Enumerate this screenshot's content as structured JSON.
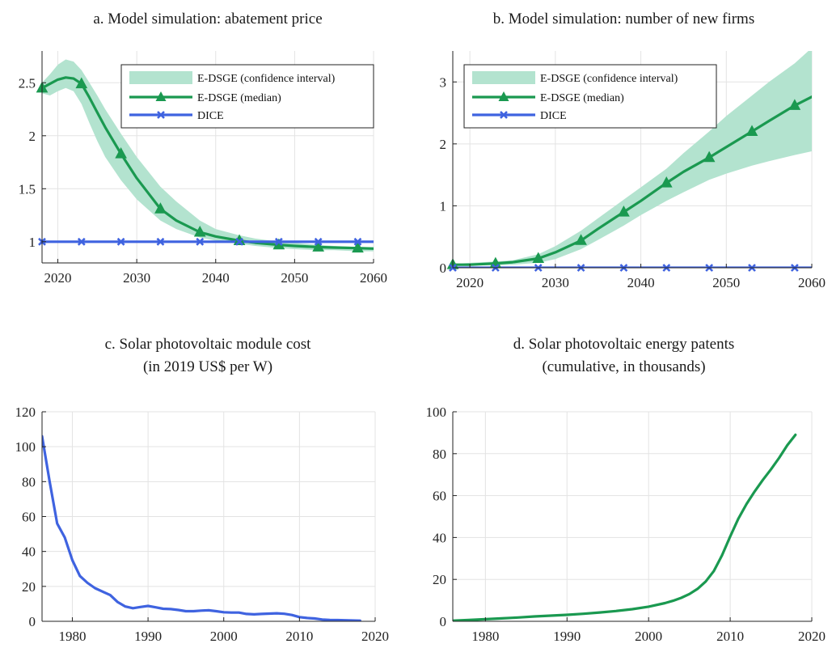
{
  "chart_data": [
    {
      "id": "a",
      "type": "line",
      "title": "a. Model simulation: abatement price",
      "xlim": [
        2018,
        2060
      ],
      "ylim": [
        0.8,
        2.8
      ],
      "xticks": [
        2020,
        2030,
        2040,
        2050,
        2060
      ],
      "yticks": [
        1,
        1.5,
        2,
        2.5
      ],
      "ytick_labels": [
        "1",
        "1.5",
        "2",
        "2.5"
      ],
      "grid": true,
      "legend_position": "top-right",
      "colors": {
        "band": "#b3e3cf",
        "median": "#1a9950",
        "dice": "#3f63e0"
      },
      "legend": [
        "E-DSGE (confidence interval)",
        "E-DSGE (median)",
        "DICE"
      ],
      "series": [
        {
          "name": "E-DSGE (confidence interval)",
          "kind": "band",
          "x": [
            2018,
            2019,
            2020,
            2021,
            2022,
            2023,
            2024,
            2025,
            2026,
            2028,
            2030,
            2033,
            2035,
            2038,
            2040,
            2043,
            2045,
            2048,
            2050,
            2053,
            2055,
            2058,
            2060
          ],
          "upper": [
            2.5,
            2.58,
            2.67,
            2.72,
            2.7,
            2.62,
            2.5,
            2.38,
            2.25,
            2.02,
            1.8,
            1.52,
            1.38,
            1.2,
            1.12,
            1.06,
            1.03,
            1.0,
            0.99,
            0.97,
            0.96,
            0.95,
            0.95
          ],
          "lower": [
            2.4,
            2.38,
            2.42,
            2.45,
            2.42,
            2.3,
            2.12,
            1.95,
            1.8,
            1.58,
            1.4,
            1.2,
            1.12,
            1.04,
            1.01,
            0.98,
            0.96,
            0.94,
            0.93,
            0.92,
            0.92,
            0.91,
            0.91
          ]
        },
        {
          "name": "E-DSGE (median)",
          "kind": "line",
          "x": [
            2018,
            2019,
            2020,
            2021,
            2022,
            2023,
            2024,
            2025,
            2026,
            2028,
            2030,
            2033,
            2035,
            2038,
            2040,
            2043,
            2045,
            2048,
            2050,
            2053,
            2055,
            2058,
            2060
          ],
          "y": [
            2.45,
            2.49,
            2.53,
            2.55,
            2.54,
            2.49,
            2.36,
            2.22,
            2.08,
            1.83,
            1.6,
            1.31,
            1.2,
            1.09,
            1.05,
            1.01,
            0.99,
            0.97,
            0.96,
            0.95,
            0.945,
            0.94,
            0.935
          ],
          "markers_x": [
            2018,
            2023,
            2028,
            2033,
            2038,
            2043,
            2048,
            2053,
            2058
          ],
          "marker": "triangle"
        },
        {
          "name": "DICE",
          "kind": "line",
          "x": [
            2018,
            2060
          ],
          "y": [
            1.0,
            1.0
          ],
          "markers_x": [
            2018,
            2023,
            2028,
            2033,
            2038,
            2043,
            2048,
            2053,
            2058
          ],
          "marker": "x"
        }
      ]
    },
    {
      "id": "b",
      "type": "line",
      "title": "b. Model simulation: number of new firms",
      "xlim": [
        2018,
        2060
      ],
      "ylim": [
        0,
        3.5
      ],
      "xticks": [
        2020,
        2030,
        2040,
        2050,
        2060
      ],
      "yticks": [
        0,
        1,
        2,
        3
      ],
      "ytick_labels": [
        "0",
        "1",
        "2",
        "3"
      ],
      "grid": true,
      "legend_position": "top-left",
      "colors": {
        "band": "#b3e3cf",
        "median": "#1a9950",
        "dice": "#3f63e0"
      },
      "legend": [
        "E-DSGE (confidence interval)",
        "E-DSGE (median)",
        "DICE"
      ],
      "series": [
        {
          "name": "E-DSGE (confidence interval)",
          "kind": "band",
          "x": [
            2018,
            2020,
            2023,
            2025,
            2028,
            2030,
            2033,
            2035,
            2038,
            2040,
            2043,
            2045,
            2048,
            2050,
            2053,
            2055,
            2058,
            2060
          ],
          "upper": [
            0.06,
            0.08,
            0.1,
            0.12,
            0.22,
            0.35,
            0.6,
            0.8,
            1.1,
            1.3,
            1.6,
            1.85,
            2.2,
            2.45,
            2.78,
            3.0,
            3.3,
            3.55
          ],
          "lower": [
            0.04,
            0.04,
            0.04,
            0.05,
            0.08,
            0.14,
            0.3,
            0.45,
            0.68,
            0.85,
            1.08,
            1.22,
            1.42,
            1.52,
            1.65,
            1.72,
            1.82,
            1.88
          ]
        },
        {
          "name": "E-DSGE (median)",
          "kind": "line",
          "x": [
            2018,
            2020,
            2023,
            2025,
            2028,
            2030,
            2033,
            2035,
            2038,
            2040,
            2043,
            2045,
            2048,
            2050,
            2053,
            2055,
            2058,
            2060
          ],
          "y": [
            0.05,
            0.05,
            0.07,
            0.09,
            0.15,
            0.25,
            0.44,
            0.63,
            0.9,
            1.08,
            1.37,
            1.55,
            1.78,
            1.95,
            2.2,
            2.37,
            2.62,
            2.76
          ],
          "markers_x": [
            2018,
            2023,
            2028,
            2033,
            2038,
            2043,
            2048,
            2053,
            2058
          ],
          "marker": "triangle"
        },
        {
          "name": "DICE",
          "kind": "line",
          "x": [
            2018,
            2060
          ],
          "y": [
            0.0,
            0.0
          ],
          "markers_x": [
            2018,
            2023,
            2028,
            2033,
            2038,
            2043,
            2048,
            2053,
            2058
          ],
          "marker": "x"
        }
      ]
    },
    {
      "id": "c",
      "type": "line",
      "title": "c. Solar photovoltaic module cost",
      "subtitle": "(in 2019 US$ per W)",
      "xlim": [
        1976,
        2020
      ],
      "ylim": [
        0,
        120
      ],
      "xticks": [
        1980,
        1990,
        2000,
        2010,
        2020
      ],
      "yticks": [
        0,
        20,
        40,
        60,
        80,
        100,
        120
      ],
      "ytick_labels": [
        "0",
        "20",
        "40",
        "60",
        "80",
        "100",
        "120"
      ],
      "grid": true,
      "colors": {
        "line": "#3f63e0"
      },
      "series": [
        {
          "kind": "line",
          "x": [
            1976,
            1977,
            1978,
            1979,
            1980,
            1981,
            1982,
            1983,
            1984,
            1985,
            1986,
            1987,
            1988,
            1989,
            1990,
            1991,
            1992,
            1993,
            1994,
            1995,
            1996,
            1997,
            1998,
            1999,
            2000,
            2001,
            2002,
            2003,
            2004,
            2005,
            2006,
            2007,
            2008,
            2009,
            2010,
            2011,
            2012,
            2013,
            2014,
            2015,
            2016,
            2017,
            2018
          ],
          "y": [
            106,
            80,
            56,
            48,
            35,
            26,
            22,
            19,
            17,
            15,
            11,
            8.5,
            7.5,
            8.2,
            8.8,
            8.0,
            7.2,
            7.0,
            6.5,
            5.8,
            5.8,
            6.1,
            6.3,
            5.8,
            5.2,
            5.0,
            5.0,
            4.2,
            4.0,
            4.2,
            4.4,
            4.6,
            4.3,
            3.6,
            2.4,
            1.9,
            1.6,
            1.0,
            0.8,
            0.7,
            0.6,
            0.45,
            0.35
          ]
        }
      ]
    },
    {
      "id": "d",
      "type": "line",
      "title": "d. Solar photovoltaic energy patents",
      "subtitle": "(cumulative, in thousands)",
      "xlim": [
        1976,
        2020
      ],
      "ylim": [
        0,
        100
      ],
      "xticks": [
        1980,
        1990,
        2000,
        2010,
        2020
      ],
      "yticks": [
        0,
        20,
        40,
        60,
        80,
        100
      ],
      "ytick_labels": [
        "0",
        "20",
        "40",
        "60",
        "80",
        "100"
      ],
      "grid": true,
      "colors": {
        "line": "#1a9950"
      },
      "series": [
        {
          "kind": "line",
          "x": [
            1976,
            1978,
            1980,
            1982,
            1984,
            1986,
            1988,
            1990,
            1992,
            1994,
            1996,
            1998,
            2000,
            2002,
            2003,
            2004,
            2005,
            2006,
            2007,
            2008,
            2009,
            2010,
            2011,
            2012,
            2013,
            2014,
            2015,
            2016,
            2017,
            2018
          ],
          "y": [
            0.3,
            0.6,
            1.0,
            1.4,
            1.8,
            2.3,
            2.7,
            3.1,
            3.6,
            4.2,
            4.9,
            5.8,
            7.0,
            8.7,
            9.8,
            11.2,
            13.0,
            15.5,
            19.0,
            24.0,
            31.5,
            40.5,
            49.0,
            56.0,
            62.0,
            67.5,
            72.5,
            78.0,
            84.0,
            89.0
          ]
        }
      ]
    }
  ]
}
